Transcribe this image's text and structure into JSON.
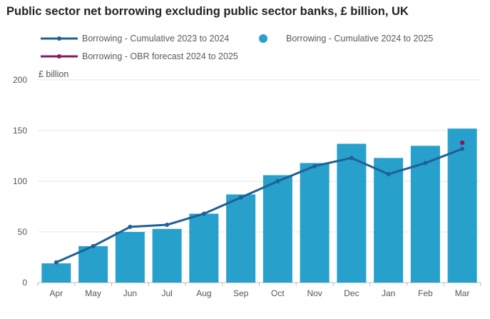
{
  "chart_data": {
    "type": "bar",
    "title": "Public sector net borrowing excluding public sector banks, £ billion, UK",
    "ylabel": "£ billion",
    "xlabel": "",
    "ylim": [
      0,
      200
    ],
    "yticks": [
      0,
      50,
      100,
      150,
      200
    ],
    "grid": true,
    "legend_position": "top-left",
    "categories": [
      "Apr",
      "May",
      "Jun",
      "Jul",
      "Aug",
      "Sep",
      "Oct",
      "Nov",
      "Dec",
      "Jan",
      "Feb",
      "Mar"
    ],
    "series": [
      {
        "name": "Borrowing - Cumulative 2024 to 2025",
        "type": "bar",
        "color": "#27a0cc",
        "values": [
          19,
          36,
          50,
          53,
          68,
          87,
          106,
          118,
          137,
          123,
          135,
          152
        ]
      },
      {
        "name": "Borrowing - Cumulative 2023 to 2024",
        "type": "line",
        "color": "#206095",
        "values": [
          20,
          36,
          55,
          57,
          68,
          84,
          100,
          115,
          123,
          107,
          118,
          132
        ]
      },
      {
        "name": "Borrowing - OBR forecast 2024 to 2025",
        "type": "line",
        "color": "#871a5b",
        "values": [
          null,
          null,
          null,
          null,
          null,
          null,
          null,
          null,
          null,
          null,
          null,
          138
        ]
      }
    ]
  }
}
